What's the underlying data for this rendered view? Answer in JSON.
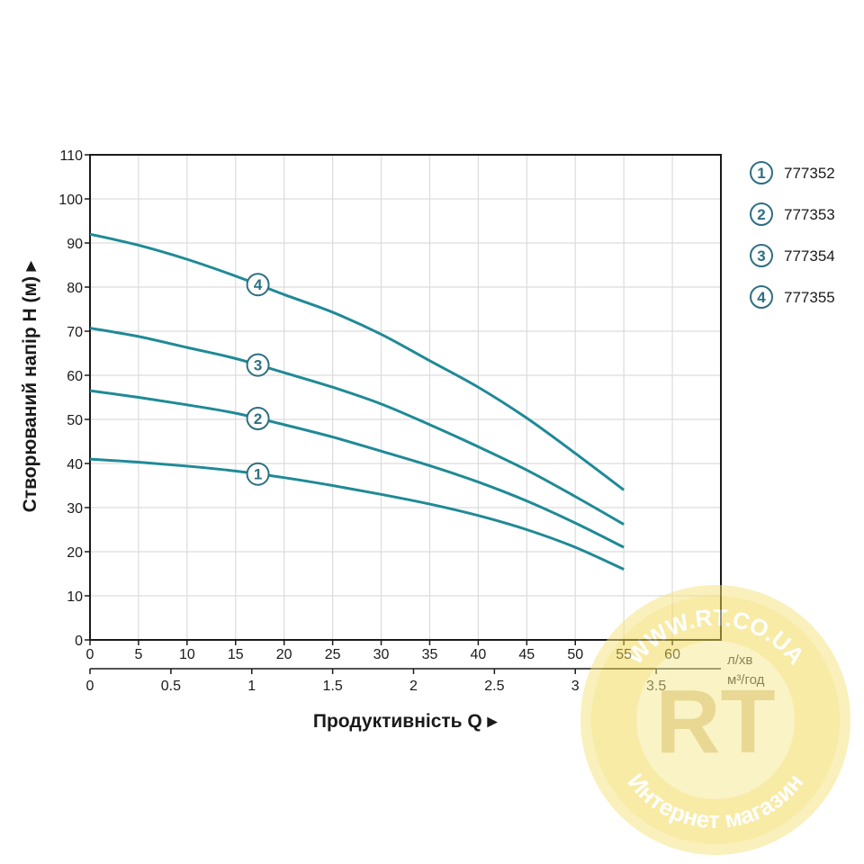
{
  "chart_data": {
    "type": "line",
    "title": "",
    "ylabel": "Створюваний напір H (м) ▸",
    "xlabel": "Продуктивність  Q ▸",
    "x_unit": "л/хв",
    "x2_unit": "м³/год",
    "ylim": [
      0,
      110
    ],
    "xlim": [
      0,
      65
    ],
    "x2lim": [
      0,
      3.9
    ],
    "y_ticks": [
      "0",
      "10",
      "20",
      "30",
      "40",
      "50",
      "60",
      "70",
      "80",
      "90",
      "100",
      "110"
    ],
    "x_ticks": [
      "0",
      "5",
      "10",
      "15",
      "20",
      "25",
      "30",
      "35",
      "40",
      "45",
      "50",
      "55",
      "60"
    ],
    "x2_ticks": [
      "0",
      "0.5",
      "1",
      "1.5",
      "2",
      "2.5",
      "3",
      "3.5"
    ],
    "grid": true,
    "line_color": "#1f8a96",
    "series": [
      {
        "name": "777352",
        "marker": "1",
        "x": [
          0,
          5,
          10,
          15,
          20,
          25,
          30,
          35,
          40,
          45,
          50,
          55
        ],
        "values": [
          41,
          40.3,
          39.4,
          38.3,
          36.8,
          35,
          33,
          30.8,
          28.2,
          25,
          21,
          16
        ]
      },
      {
        "name": "777353",
        "marker": "2",
        "x": [
          0,
          5,
          10,
          15,
          20,
          25,
          30,
          35,
          40,
          45,
          50,
          55
        ],
        "values": [
          56.5,
          55,
          53.3,
          51.4,
          48.8,
          46,
          42.8,
          39.5,
          35.8,
          31.5,
          26.5,
          21
        ]
      },
      {
        "name": "777354",
        "marker": "3",
        "x": [
          0,
          5,
          10,
          15,
          20,
          25,
          30,
          35,
          40,
          45,
          50,
          55
        ],
        "values": [
          70.7,
          68.8,
          66.3,
          63.8,
          60.6,
          57.3,
          53.5,
          48.8,
          43.8,
          38.5,
          32.5,
          26.2
        ]
      },
      {
        "name": "777355",
        "marker": "4",
        "x": [
          0,
          5,
          10,
          15,
          20,
          25,
          30,
          35,
          40,
          45,
          50,
          55
        ],
        "values": [
          92,
          89.5,
          86.3,
          82.5,
          78.3,
          74.3,
          69.3,
          63.3,
          57.3,
          50.3,
          42.3,
          34
        ]
      }
    ]
  },
  "watermark": {
    "top_text": "WWW.RT.CO.UA",
    "logo": "RT",
    "bottom_text": "Интернет магазин"
  }
}
